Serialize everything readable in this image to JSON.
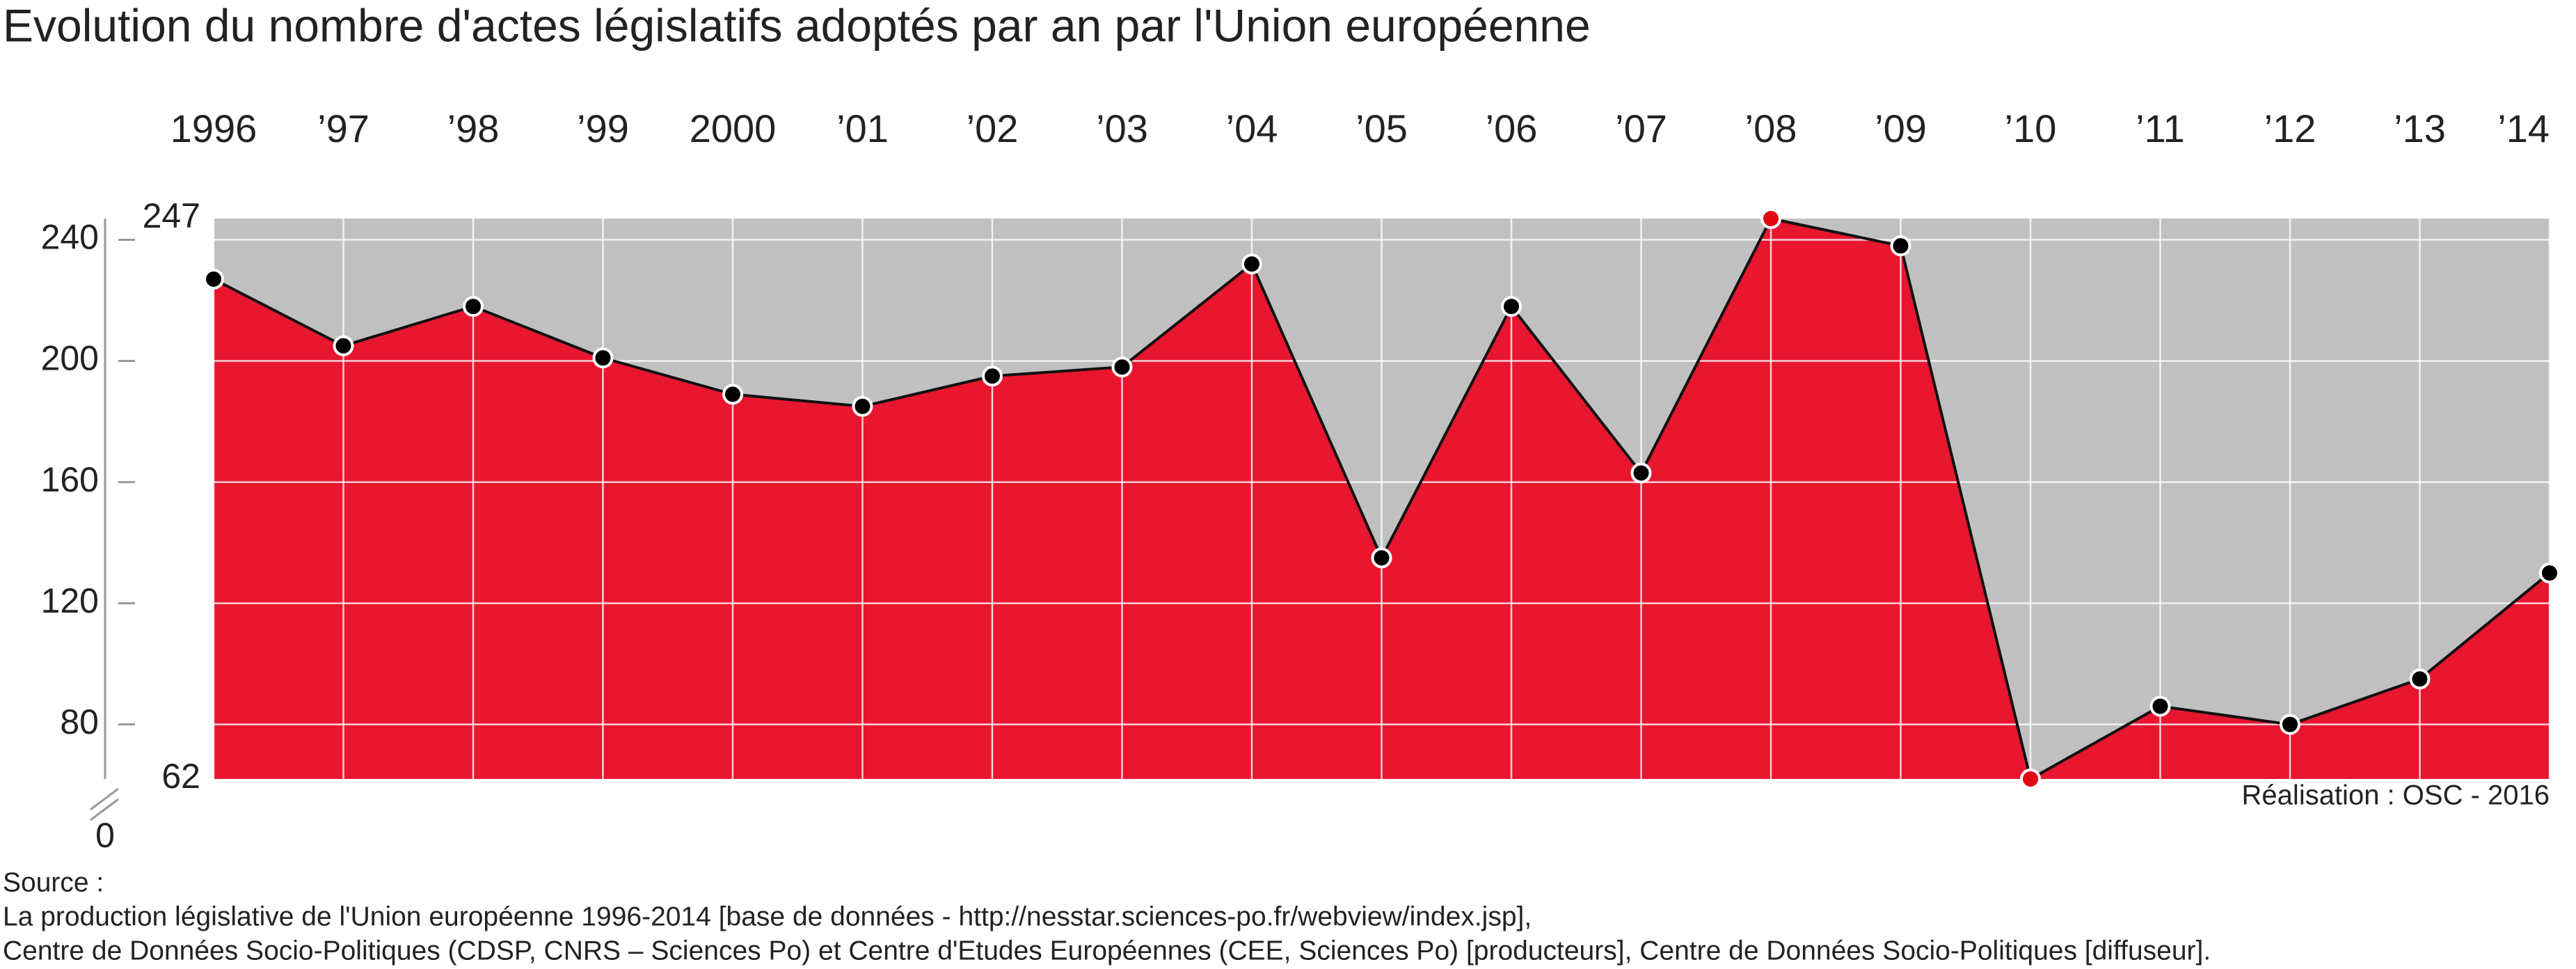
{
  "chart_data": {
    "type": "area",
    "title": "Evolution du nombre d'actes législatifs adoptés par an par l'Union européenne",
    "categories": [
      "1996",
      "’97",
      "’98",
      "’99",
      "2000",
      "’01",
      "’02",
      "’03",
      "’04",
      "’05",
      "’06",
      "’07",
      "’08",
      "’09",
      "’10",
      "’11",
      "’12",
      "’13",
      "’14"
    ],
    "series": [
      {
        "color": "#e8162f",
        "values": [
          227,
          205,
          218,
          201,
          189,
          185,
          195,
          198,
          232,
          135,
          218,
          163,
          247,
          238,
          62,
          86,
          80,
          95,
          130
        ]
      }
    ],
    "ylim": [
      62,
      247
    ],
    "yticks": [
      80,
      120,
      160,
      200,
      240
    ],
    "axis_break_tick": 0,
    "grid": true,
    "background_color": "#c0c0c0",
    "marker_color": "#000000",
    "extreme_color": "#e30613",
    "credit": "Réalisation : OSC - 2016",
    "source": [
      "Source :",
      "La production législative de l'Union européenne 1996-2014 [base de données - http://nesstar.sciences-po.fr/webview/index.jsp],",
      "Centre de Données Socio-Politiques (CDSP, CNRS – Sciences Po) et Centre d'Etudes Européennes (CEE, Sciences Po) [producteurs], Centre de Données Socio-Politiques [diffuseur]."
    ]
  }
}
